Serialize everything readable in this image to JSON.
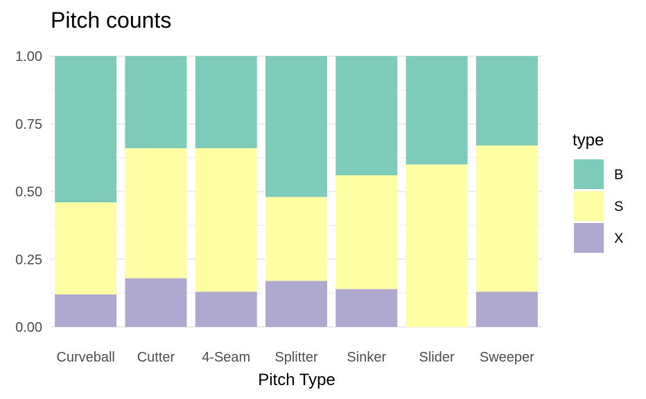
{
  "chart_data": {
    "type": "bar",
    "stacked": true,
    "title": "Pitch counts",
    "xlabel": "Pitch Type",
    "ylabel": "",
    "ylim": [
      0,
      1
    ],
    "y_ticks": [
      "0.00",
      "0.25",
      "0.50",
      "0.75",
      "1.00"
    ],
    "y_tick_values": [
      0,
      0.25,
      0.5,
      0.75,
      1.0
    ],
    "grid": true,
    "legend_position": "right",
    "legend_title": "type",
    "categories": [
      "Curveball",
      "Cutter",
      "4-Seam",
      "Splitter",
      "Sinker",
      "Slider",
      "Sweeper"
    ],
    "series": [
      {
        "name": "B",
        "color": "#7fcbb9",
        "values": [
          0.54,
          0.34,
          0.34,
          0.52,
          0.44,
          0.4,
          0.33
        ]
      },
      {
        "name": "S",
        "color": "#feffa5",
        "values": [
          0.34,
          0.48,
          0.53,
          0.31,
          0.42,
          0.6,
          0.54
        ]
      },
      {
        "name": "X",
        "color": "#b0a9cf",
        "values": [
          0.12,
          0.18,
          0.13,
          0.17,
          0.14,
          0.0,
          0.13
        ]
      }
    ]
  }
}
